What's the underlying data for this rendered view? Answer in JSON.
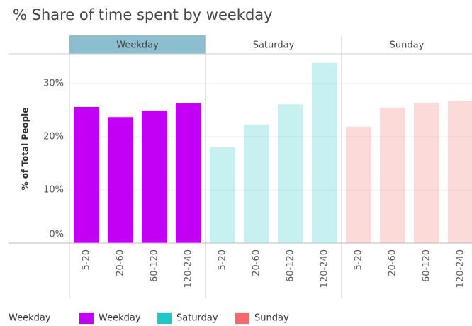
{
  "chart_data": {
    "type": "bar",
    "title": "% Share of time spent by weekday",
    "y_label": "% of Total People",
    "legend_title": "Weekday",
    "highlight": "Weekday",
    "categories": [
      "5-20",
      "20-60",
      "60-120",
      "120-240"
    ],
    "series": [
      {
        "name": "Weekday",
        "color": "#c300f5",
        "values": [
          25.6,
          23.7,
          24.9,
          26.3
        ]
      },
      {
        "name": "Saturday",
        "color": "#1fc7c7",
        "values": [
          18.0,
          22.3,
          26.1,
          33.9
        ]
      },
      {
        "name": "Sunday",
        "color": "#f46a6a",
        "values": [
          21.9,
          25.5,
          26.4,
          26.7
        ]
      }
    ],
    "ylim": [
      0,
      35.6
    ],
    "yticks": [
      {
        "value": 0,
        "label": "0%"
      },
      {
        "value": 10,
        "label": "10%"
      },
      {
        "value": 20,
        "label": "20%"
      },
      {
        "value": 30,
        "label": "30%"
      }
    ],
    "grid": true
  }
}
